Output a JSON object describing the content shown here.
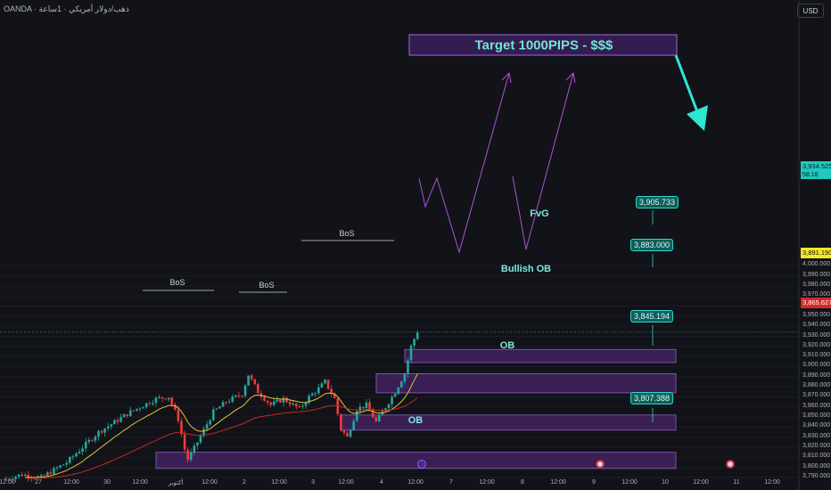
{
  "header": {
    "symbol_text": "OANDA · ذهب/دولار أمريكي · 1ساعة"
  },
  "currency_label": "USD",
  "price_tags": {
    "current": {
      "price": "3,934.525",
      "timer": "58:18",
      "color": "#1ec9be"
    },
    "yellow": {
      "price": "3,891.190",
      "color": "#f5e629"
    },
    "red": {
      "price": "3,865.627",
      "color": "#d62828"
    }
  },
  "annotations": {
    "target": "Target 1000PIPS - $$$",
    "fvg": "FvG",
    "bullish_ob": "Bullish OB",
    "ob1": "OB",
    "ob2": "OB",
    "bos1": "BoS",
    "bos2": "BoS",
    "bos3": "BoS",
    "p1": "3,905.733",
    "p2": "3,883.000",
    "p3": "3,845.194",
    "p4": "3,807.388"
  },
  "chart_data": {
    "type": "candlestick",
    "y_ticks": [
      3790,
      3800,
      3810,
      3820,
      3830,
      3840,
      3850,
      3860,
      3870,
      3880,
      3890,
      3900,
      3910,
      3920,
      3930,
      3940,
      3950,
      3960,
      3970,
      3980,
      3990,
      4000
    ],
    "y_tick_labels": [
      "3,790.000",
      "3,800.000",
      "3,810.000",
      "3,820.000",
      "3,830.000",
      "3,840.000",
      "3,850.000",
      "3,860.000",
      "3,870.000",
      "3,880.000",
      "3,890.000",
      "3,900.000",
      "3,910.000",
      "3,920.000",
      "3,930.000",
      "3,940.000",
      "3,950.000",
      "3,960.000",
      "3,970.000",
      "3,980.000",
      "3,990.000",
      "4,000.000"
    ],
    "x_labels": [
      "12:00",
      "27",
      "12:00",
      "30",
      "12:00",
      "أكتوبر",
      "12:00",
      "2",
      "12:00",
      "3",
      "12:00",
      "4",
      "12:00",
      "7",
      "12:00",
      "8",
      "12:00",
      "9",
      "12:00",
      "10",
      "12:00",
      "11",
      "12:00"
    ],
    "y_range": [
      3785,
      4005
    ],
    "colors": {
      "up": "#26a69a",
      "down": "#ef3b3b",
      "ema_fast": "#e3c23a",
      "ema_slow": "#c62828",
      "zone": "#5b2a86",
      "arrow": "#2ee6d2"
    }
  }
}
